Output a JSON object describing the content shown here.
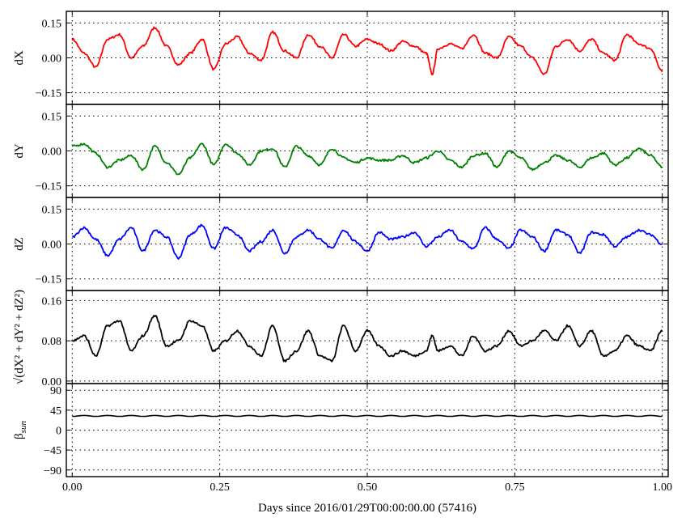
{
  "chart_data": {
    "type": "line",
    "xlabel": "Days since 2016/01/29T00:00:00.00 (57416)",
    "x_ticks": [
      "0.00",
      "0.25",
      "0.50",
      "0.75",
      "1.00"
    ],
    "x_tick_values": [
      0,
      0.25,
      0.5,
      0.75,
      1.0
    ],
    "xlim": [
      -0.01,
      1.01
    ],
    "grid": true,
    "panels": [
      {
        "id": "dX",
        "ylabel": "dX",
        "color": "#ff0000",
        "ylim": [
          -0.2,
          0.2
        ],
        "yticks": [
          -0.15,
          0,
          0.15
        ],
        "ytick_labels": [
          "−0.15",
          "0.00",
          "0.15"
        ],
        "x": [
          0.0,
          0.02,
          0.04,
          0.06,
          0.08,
          0.1,
          0.12,
          0.14,
          0.16,
          0.18,
          0.2,
          0.22,
          0.24,
          0.26,
          0.28,
          0.3,
          0.32,
          0.34,
          0.36,
          0.38,
          0.4,
          0.42,
          0.44,
          0.46,
          0.48,
          0.5,
          0.52,
          0.54,
          0.56,
          0.58,
          0.6,
          0.61,
          0.62,
          0.64,
          0.66,
          0.68,
          0.7,
          0.72,
          0.74,
          0.76,
          0.78,
          0.8,
          0.82,
          0.84,
          0.86,
          0.88,
          0.9,
          0.92,
          0.94,
          0.96,
          0.98,
          1.0
        ],
        "y": [
          0.08,
          0.02,
          -0.04,
          0.08,
          0.1,
          0.0,
          0.05,
          0.13,
          0.05,
          -0.03,
          0.02,
          0.08,
          -0.05,
          0.06,
          0.09,
          0.02,
          -0.01,
          0.11,
          0.03,
          0.0,
          0.1,
          0.05,
          0.0,
          0.1,
          0.05,
          0.08,
          0.06,
          0.03,
          0.07,
          0.05,
          0.02,
          -0.07,
          0.04,
          0.06,
          0.04,
          0.1,
          0.02,
          0.0,
          0.09,
          0.05,
          0.0,
          -0.07,
          0.05,
          0.08,
          0.03,
          0.08,
          0.02,
          -0.01,
          0.1,
          0.06,
          0.04,
          -0.06
        ]
      },
      {
        "id": "dY",
        "ylabel": "dY",
        "color": "#008000",
        "ylim": [
          -0.2,
          0.2
        ],
        "yticks": [
          -0.15,
          0,
          0.15
        ],
        "ytick_labels": [
          "−0.15",
          "0.00",
          "0.15"
        ],
        "x": [
          0.0,
          0.02,
          0.04,
          0.06,
          0.08,
          0.1,
          0.12,
          0.14,
          0.16,
          0.18,
          0.2,
          0.22,
          0.24,
          0.26,
          0.28,
          0.3,
          0.32,
          0.34,
          0.36,
          0.38,
          0.4,
          0.42,
          0.44,
          0.46,
          0.48,
          0.5,
          0.52,
          0.54,
          0.56,
          0.58,
          0.6,
          0.62,
          0.64,
          0.66,
          0.68,
          0.7,
          0.72,
          0.74,
          0.76,
          0.78,
          0.8,
          0.82,
          0.84,
          0.86,
          0.88,
          0.9,
          0.92,
          0.94,
          0.96,
          0.98,
          1.0
        ],
        "y": [
          0.02,
          0.03,
          -0.01,
          -0.07,
          -0.04,
          -0.02,
          -0.08,
          0.02,
          -0.05,
          -0.1,
          -0.03,
          0.03,
          -0.06,
          0.03,
          -0.01,
          -0.06,
          0.0,
          0.01,
          -0.07,
          0.02,
          -0.02,
          -0.06,
          0.01,
          -0.03,
          -0.05,
          -0.03,
          -0.04,
          -0.04,
          -0.02,
          -0.05,
          -0.03,
          0.0,
          -0.04,
          -0.07,
          -0.02,
          -0.01,
          -0.07,
          0.0,
          -0.03,
          -0.08,
          -0.05,
          -0.02,
          -0.04,
          -0.07,
          -0.03,
          -0.01,
          -0.06,
          -0.03,
          0.01,
          -0.02,
          -0.07
        ]
      },
      {
        "id": "dZ",
        "ylabel": "dZ",
        "color": "#0000ff",
        "ylim": [
          -0.2,
          0.2
        ],
        "yticks": [
          -0.15,
          0,
          0.15
        ],
        "ytick_labels": [
          "−0.15",
          "0.00",
          "0.15"
        ],
        "x": [
          0.0,
          0.02,
          0.04,
          0.06,
          0.08,
          0.1,
          0.12,
          0.14,
          0.16,
          0.18,
          0.2,
          0.22,
          0.24,
          0.26,
          0.28,
          0.3,
          0.32,
          0.34,
          0.36,
          0.38,
          0.4,
          0.42,
          0.44,
          0.46,
          0.48,
          0.5,
          0.52,
          0.54,
          0.56,
          0.58,
          0.6,
          0.62,
          0.64,
          0.66,
          0.68,
          0.7,
          0.72,
          0.74,
          0.76,
          0.78,
          0.8,
          0.82,
          0.84,
          0.86,
          0.88,
          0.9,
          0.92,
          0.94,
          0.96,
          0.98,
          1.0
        ],
        "y": [
          0.03,
          0.07,
          0.02,
          -0.05,
          0.02,
          0.07,
          -0.03,
          0.06,
          0.03,
          -0.06,
          0.04,
          0.08,
          -0.02,
          0.07,
          0.04,
          -0.03,
          0.01,
          0.06,
          -0.04,
          0.03,
          0.06,
          0.02,
          -0.02,
          0.06,
          0.01,
          -0.03,
          0.05,
          0.02,
          0.03,
          0.05,
          -0.01,
          0.03,
          0.06,
          0.01,
          -0.02,
          0.07,
          0.02,
          -0.02,
          0.06,
          0.03,
          -0.03,
          0.06,
          0.04,
          -0.04,
          0.05,
          0.04,
          -0.01,
          0.03,
          0.06,
          0.04,
          0.0
        ]
      },
      {
        "id": "dR",
        "ylabel": "√(dX² + dY² + dZ²)",
        "color": "#000000",
        "ylim": [
          -0.005,
          0.18
        ],
        "yticks": [
          0.0,
          0.08,
          0.16
        ],
        "ytick_labels": [
          "0.00",
          "0.08",
          "0.16"
        ],
        "x": [
          0.0,
          0.02,
          0.04,
          0.06,
          0.08,
          0.1,
          0.12,
          0.14,
          0.16,
          0.18,
          0.2,
          0.22,
          0.24,
          0.26,
          0.28,
          0.3,
          0.32,
          0.34,
          0.36,
          0.38,
          0.4,
          0.42,
          0.44,
          0.46,
          0.48,
          0.5,
          0.52,
          0.54,
          0.56,
          0.58,
          0.6,
          0.61,
          0.62,
          0.64,
          0.66,
          0.68,
          0.7,
          0.72,
          0.74,
          0.76,
          0.78,
          0.8,
          0.82,
          0.84,
          0.86,
          0.88,
          0.9,
          0.92,
          0.94,
          0.96,
          0.98,
          1.0
        ],
        "y": [
          0.08,
          0.09,
          0.05,
          0.11,
          0.12,
          0.06,
          0.09,
          0.13,
          0.07,
          0.08,
          0.12,
          0.11,
          0.06,
          0.08,
          0.1,
          0.07,
          0.05,
          0.11,
          0.04,
          0.06,
          0.1,
          0.05,
          0.04,
          0.11,
          0.06,
          0.1,
          0.07,
          0.05,
          0.06,
          0.05,
          0.06,
          0.09,
          0.06,
          0.07,
          0.05,
          0.09,
          0.06,
          0.07,
          0.1,
          0.07,
          0.08,
          0.1,
          0.08,
          0.11,
          0.07,
          0.1,
          0.05,
          0.06,
          0.09,
          0.07,
          0.06,
          0.1
        ]
      },
      {
        "id": "beta",
        "ylabel": "β_sun",
        "color": "#000000",
        "ylim": [
          -105,
          105
        ],
        "yticks": [
          -90,
          -45,
          0,
          45,
          90
        ],
        "ytick_labels": [
          "−90",
          "−45",
          "0",
          "45",
          "90"
        ],
        "x": [
          0.0,
          0.02,
          0.04,
          0.06,
          0.08,
          0.1,
          0.12,
          0.14,
          0.16,
          0.18,
          0.2,
          0.22,
          0.24,
          0.26,
          0.28,
          0.3,
          0.32,
          0.34,
          0.36,
          0.38,
          0.4,
          0.42,
          0.44,
          0.46,
          0.48,
          0.5,
          0.52,
          0.54,
          0.56,
          0.58,
          0.6,
          0.62,
          0.64,
          0.66,
          0.68,
          0.7,
          0.72,
          0.74,
          0.76,
          0.78,
          0.8,
          0.82,
          0.84,
          0.86,
          0.88,
          0.9,
          0.92,
          0.94,
          0.96,
          0.98,
          1.0
        ],
        "y": [
          31,
          33,
          31,
          33,
          31,
          33,
          31,
          33,
          31,
          33,
          31,
          33,
          31,
          33,
          31,
          33,
          31,
          33,
          31,
          33,
          31,
          33,
          31,
          33,
          31,
          33,
          31,
          33,
          31,
          33,
          31,
          33,
          31,
          33,
          31,
          33,
          31,
          33,
          31,
          33,
          31,
          33,
          31,
          33,
          31,
          33,
          31,
          33,
          31,
          33,
          31
        ]
      }
    ]
  }
}
